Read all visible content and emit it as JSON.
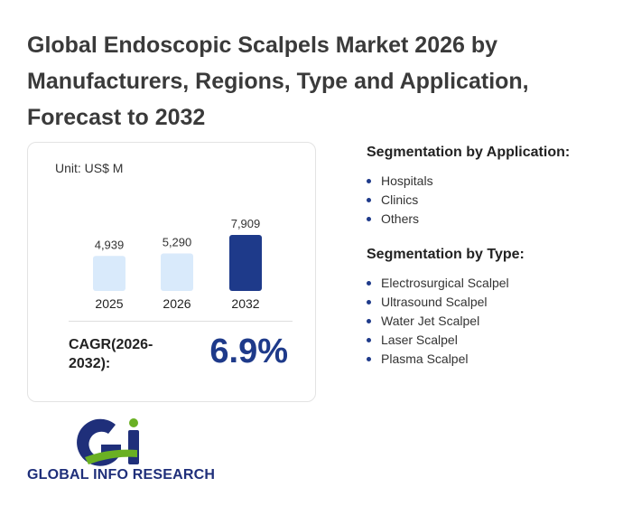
{
  "title": "Global Endoscopic Scalpels Market 2026 by Manufacturers, Regions, Type and Application, Forecast to 2032",
  "chart_data": {
    "type": "bar",
    "unit": "Unit: US$ M",
    "categories": [
      "2025",
      "2026",
      "2032"
    ],
    "values": [
      4939,
      5290,
      7909
    ],
    "value_labels": [
      "4,939",
      "5,290",
      "7,909"
    ],
    "colors": [
      "#d9eafb",
      "#d9eafb",
      "#1e3a8a"
    ],
    "title": "",
    "xlabel": "",
    "ylabel": ""
  },
  "cagr": {
    "label": "CAGR(2026-2032):",
    "value": "6.9%"
  },
  "segmentation_application": {
    "title": "Segmentation by Application:",
    "items": [
      "Hospitals",
      "Clinics",
      "Others"
    ]
  },
  "segmentation_type": {
    "title": "Segmentation by Type:",
    "items": [
      "Electrosurgical Scalpel",
      "Ultrasound Scalpel",
      "Water Jet Scalpel",
      "Laser Scalpel",
      "Plasma Scalpel"
    ]
  },
  "brand": {
    "name": "GLOBAL INFO RESEARCH",
    "colors": {
      "green": "#6ab023",
      "navy": "#1f2f7a"
    }
  }
}
